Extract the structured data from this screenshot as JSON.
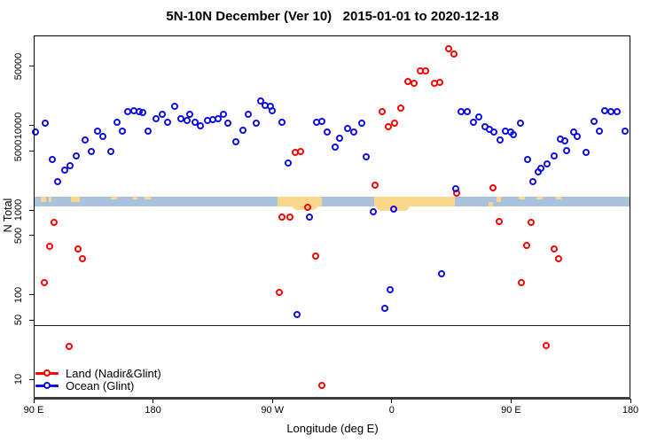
{
  "chart_data": {
    "type": "scatter",
    "title": "5N-10N December (Ver 10)   2015-01-01 to 2020-12-18",
    "xlabel": "Longitude (deg E)",
    "ylabel": "N Total",
    "x_axis": {
      "range_deg": [
        90,
        540
      ],
      "note": "longitude wraps eastward: 90E, 180, 90W, 0, 90E, 180",
      "ticks": [
        {
          "lon": 90,
          "label": "90 E"
        },
        {
          "lon": 180,
          "label": "180"
        },
        {
          "lon": 270,
          "label": "90 W"
        },
        {
          "lon": 360,
          "label": "0"
        },
        {
          "lon": 450,
          "label": "90 E"
        },
        {
          "lon": 540,
          "label": "180"
        }
      ]
    },
    "y_axis": {
      "scale": "log10",
      "range": [
        6,
        115000
      ],
      "ticks": [
        {
          "v": 10,
          "label": "10"
        },
        {
          "v": 50,
          "label": "50"
        },
        {
          "v": 100,
          "label": "100"
        },
        {
          "v": 500,
          "label": "500"
        },
        {
          "v": 1000,
          "label": "1000"
        },
        {
          "v": 5000,
          "label": "5000"
        },
        {
          "v": 10000,
          "label": "10000"
        },
        {
          "v": 50000,
          "label": "50000"
        }
      ]
    },
    "reference_line_y": 44,
    "series": [
      {
        "name": "Land (Nadir&Glint)",
        "color": "#FF0000",
        "points": [
          [
            98.5,
            136
          ],
          [
            102.7,
            369
          ],
          [
            106,
            700
          ],
          [
            117.4,
            24
          ],
          [
            124,
            340
          ],
          [
            126.8,
            261
          ],
          [
            275.7,
            106
          ],
          [
            277.5,
            824
          ],
          [
            283.5,
            824
          ],
          [
            287.5,
            4700
          ],
          [
            291.5,
            4830
          ],
          [
            296.8,
            1075
          ],
          [
            303.1,
            285
          ],
          [
            307.5,
            8.3
          ],
          [
            347.7,
            1960
          ],
          [
            353.3,
            14500
          ],
          [
            357.7,
            9600
          ],
          [
            362.2,
            10500
          ],
          [
            367.3,
            15700
          ],
          [
            372.6,
            32400
          ],
          [
            377.3,
            31200
          ],
          [
            381.6,
            43300
          ],
          [
            386,
            44000
          ],
          [
            392.7,
            31200
          ],
          [
            396.7,
            32000
          ],
          [
            403,
            80000
          ],
          [
            407.4,
            68500
          ],
          [
            409.6,
            1580
          ],
          [
            437,
            1800
          ],
          [
            441.3,
            718
          ],
          [
            458,
            137
          ],
          [
            462,
            375
          ],
          [
            465.4,
            700
          ],
          [
            477,
            24.5
          ],
          [
            482.6,
            340
          ],
          [
            486,
            261
          ]
        ]
      },
      {
        "name": "Ocean (Glint)",
        "color": "#0D0DE8",
        "points": [
          [
            92,
            8150
          ],
          [
            98.7,
            10600
          ],
          [
            104.5,
            3860
          ],
          [
            108.5,
            2130
          ],
          [
            114,
            2890
          ],
          [
            117.9,
            3280
          ],
          [
            122.3,
            4290
          ],
          [
            129,
            6670
          ],
          [
            133.5,
            4830
          ],
          [
            138.6,
            8500
          ],
          [
            142.4,
            7230
          ],
          [
            148.4,
            4830
          ],
          [
            153.5,
            10800
          ],
          [
            157.5,
            8400
          ],
          [
            161.3,
            14500
          ],
          [
            166.2,
            14850
          ],
          [
            170.2,
            14500
          ],
          [
            172.4,
            14000
          ],
          [
            176.9,
            8400
          ],
          [
            182.5,
            11700
          ],
          [
            187.4,
            13400
          ],
          [
            191.4,
            10800
          ],
          [
            196.5,
            16400
          ],
          [
            201.4,
            11700
          ],
          [
            205.9,
            11400
          ],
          [
            208.2,
            13200
          ],
          [
            212.2,
            10800
          ],
          [
            216.2,
            9800
          ],
          [
            221.1,
            11400
          ],
          [
            225.1,
            11500
          ],
          [
            229.1,
            11700
          ],
          [
            233.3,
            13200
          ],
          [
            236.9,
            10400
          ],
          [
            242.5,
            6250
          ],
          [
            248,
            8700
          ],
          [
            252.3,
            13400
          ],
          [
            257.9,
            10500
          ],
          [
            261.4,
            19000
          ],
          [
            264.8,
            16800
          ],
          [
            268.6,
            16400
          ],
          [
            270.4,
            14700
          ],
          [
            277.5,
            10800
          ],
          [
            282,
            3580
          ],
          [
            288.6,
            57
          ],
          [
            298.2,
            824
          ],
          [
            303.8,
            10800
          ],
          [
            307.6,
            11000
          ],
          [
            311.4,
            8300
          ],
          [
            317.6,
            5450
          ],
          [
            321,
            6950
          ],
          [
            327.2,
            9000
          ],
          [
            331.6,
            8150
          ],
          [
            337.6,
            10400
          ],
          [
            341.4,
            4170
          ],
          [
            346.5,
            950
          ],
          [
            355,
            68
          ],
          [
            359.3,
            113
          ],
          [
            362,
            1010
          ],
          [
            397.8,
            176
          ],
          [
            408.3,
            1760
          ],
          [
            412.3,
            14250
          ],
          [
            417.2,
            14500
          ],
          [
            422.3,
            10700
          ],
          [
            426.1,
            12500
          ],
          [
            430.5,
            9550
          ],
          [
            434.3,
            8900
          ],
          [
            437.3,
            8150
          ],
          [
            441.8,
            6670
          ],
          [
            446.3,
            8400
          ],
          [
            449.8,
            8150
          ],
          [
            452.2,
            7600
          ],
          [
            457.4,
            10600
          ],
          [
            462.5,
            3950
          ],
          [
            467,
            2130
          ],
          [
            470.8,
            2820
          ],
          [
            472.6,
            3100
          ],
          [
            477.5,
            3440
          ],
          [
            482.6,
            4290
          ],
          [
            487.5,
            6780
          ],
          [
            490.9,
            6520
          ],
          [
            492.2,
            5030
          ],
          [
            497.6,
            8150
          ],
          [
            500.5,
            7230
          ],
          [
            507.2,
            4760
          ],
          [
            512.7,
            11000
          ],
          [
            516.8,
            8400
          ],
          [
            521.2,
            14700
          ],
          [
            525.7,
            14500
          ],
          [
            530.2,
            14500
          ],
          [
            536.2,
            8400
          ]
        ]
      }
    ],
    "map_strip": {
      "value_band": [
        1100,
        1450
      ],
      "ocean_color": "#A9C2DE",
      "land_color": "#FBD78A",
      "land_segments": [
        {
          "lon1": 95.3,
          "lon2": 99.4,
          "style": "top"
        },
        {
          "lon1": 101.4,
          "lon2": 103.4,
          "style": "top"
        },
        {
          "lon1": 118.1,
          "lon2": 124.8,
          "style": "top"
        },
        {
          "lon1": 148.2,
          "lon2": 152.8,
          "style": "thin"
        },
        {
          "lon1": 164.9,
          "lon2": 168.2,
          "style": "thin"
        },
        {
          "lon1": 173.6,
          "lon2": 178.3,
          "style": "thin"
        },
        {
          "lon1": 273.9,
          "lon2": 307.3,
          "style": "full"
        },
        {
          "lon1": 346.8,
          "lon2": 407.6,
          "style": "full"
        },
        {
          "lon1": 433.0,
          "lon2": 436.4,
          "style": "bottom"
        },
        {
          "lon1": 439.0,
          "lon2": 442.4,
          "style": "top"
        },
        {
          "lon1": 455.7,
          "lon2": 460.4,
          "style": "thin"
        },
        {
          "lon1": 469.1,
          "lon2": 473.8,
          "style": "thin"
        },
        {
          "lon1": 483.8,
          "lon2": 487.8,
          "style": "thin"
        }
      ],
      "land_lobes": [
        {
          "lon1": 285.2,
          "lon2": 304.0,
          "depth": 4
        },
        {
          "lon1": 348.1,
          "lon2": 373.5,
          "depth": 5
        }
      ]
    }
  }
}
